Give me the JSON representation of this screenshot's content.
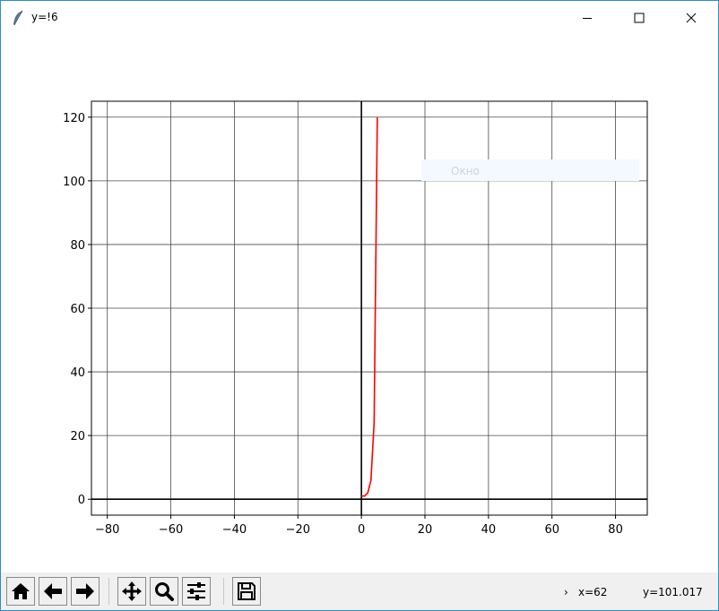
{
  "window": {
    "title": "y=!6",
    "icons": {
      "app": "feather-icon",
      "minimize": "minimize-icon",
      "maximize": "maximize-icon",
      "close": "close-icon"
    }
  },
  "chart_data": {
    "type": "line",
    "title": "",
    "xlabel": "",
    "ylabel": "",
    "xlim": [
      -85,
      90
    ],
    "ylim": [
      -5,
      125
    ],
    "xticks": [
      -80,
      -60,
      -40,
      -20,
      0,
      20,
      40,
      60,
      80
    ],
    "yticks": [
      0,
      20,
      40,
      60,
      80,
      100,
      120
    ],
    "grid": true,
    "axes_lines": {
      "x_zero": true,
      "y_zero": true
    },
    "series": [
      {
        "color": "#ff0000",
        "x": [
          0,
          1,
          2,
          3,
          4,
          5
        ],
        "y": [
          1,
          1,
          2,
          6,
          24,
          120
        ]
      }
    ],
    "legend_box": {
      "label": "Окно",
      "placement": "top-right"
    }
  },
  "toolbar": {
    "buttons": [
      {
        "name": "home-button",
        "icon": "home-icon"
      },
      {
        "name": "back-button",
        "icon": "arrow-left-icon"
      },
      {
        "name": "forward-button",
        "icon": "arrow-right-icon"
      },
      {
        "name": "pan-button",
        "icon": "move-icon"
      },
      {
        "name": "zoom-button",
        "icon": "magnifier-icon"
      },
      {
        "name": "configure-button",
        "icon": "sliders-icon"
      },
      {
        "name": "save-button",
        "icon": "floppy-icon"
      }
    ],
    "status_arrow": "›",
    "status_x": "x=62",
    "status_y": "y=101.017"
  }
}
